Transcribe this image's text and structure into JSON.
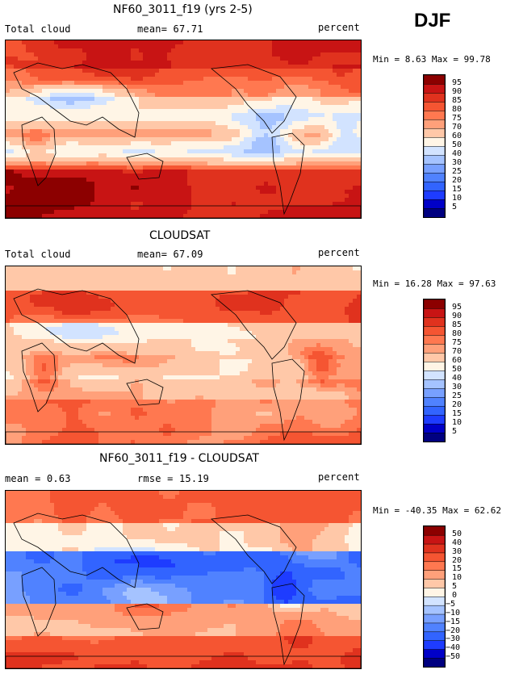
{
  "season": "DJF",
  "panels": [
    {
      "title": "NF60_3011_f19 (yrs 2-5)",
      "left_label": "Total cloud",
      "center_label": "mean=  67.71",
      "right_label": "percent",
      "minmax": "Min =   8.63 Max =  99.78",
      "scale": "abs"
    },
    {
      "title": "CLOUDSAT",
      "left_label": "Total cloud",
      "center_label": "mean=  67.09",
      "right_label": "percent",
      "minmax": "Min =  16.28 Max =  97.63",
      "scale": "abs"
    },
    {
      "title": "NF60_3011_f19 - CLOUDSAT",
      "left_label": "mean =   0.63",
      "center_label": "rmse =  15.19",
      "right_label": "percent",
      "minmax": "Min = -40.35 Max =  62.62",
      "scale": "diff"
    }
  ],
  "chart_data": [
    {
      "type": "heatmap",
      "title": "NF60_3011_f19 (yrs 2-5)",
      "variable": "Total cloud",
      "units": "percent",
      "mean": 67.71,
      "min": 8.63,
      "max": 99.78,
      "colorbar_levels": [
        5,
        10,
        15,
        20,
        25,
        30,
        40,
        50,
        60,
        70,
        75,
        80,
        85,
        90,
        95
      ],
      "colorbar_colors": [
        "#000080",
        "#0000c8",
        "#1e3cff",
        "#3264ff",
        "#5082ff",
        "#78a0ff",
        "#a5c3ff",
        "#d2e3ff",
        "#fff5e6",
        "#ffc8a8",
        "#ffa07a",
        "#ff7850",
        "#f55532",
        "#e0321e",
        "#c81414",
        "#8c0000"
      ]
    },
    {
      "type": "heatmap",
      "title": "CLOUDSAT",
      "variable": "Total cloud",
      "units": "percent",
      "mean": 67.09,
      "min": 16.28,
      "max": 97.63,
      "colorbar_levels": [
        5,
        10,
        15,
        20,
        25,
        30,
        40,
        50,
        60,
        70,
        75,
        80,
        85,
        90,
        95
      ],
      "colorbar_colors": [
        "#000080",
        "#0000c8",
        "#1e3cff",
        "#3264ff",
        "#5082ff",
        "#78a0ff",
        "#a5c3ff",
        "#d2e3ff",
        "#fff5e6",
        "#ffc8a8",
        "#ffa07a",
        "#ff7850",
        "#f55532",
        "#e0321e",
        "#c81414",
        "#8c0000"
      ]
    },
    {
      "type": "heatmap",
      "title": "NF60_3011_f19 - CLOUDSAT",
      "variable": "Total cloud difference",
      "units": "percent",
      "mean": 0.63,
      "rmse": 15.19,
      "min": -40.35,
      "max": 62.62,
      "colorbar_levels": [
        -50,
        -40,
        -30,
        -20,
        -15,
        -10,
        -5,
        0,
        5,
        10,
        15,
        20,
        30,
        40,
        50
      ],
      "colorbar_colors": [
        "#000080",
        "#0000c8",
        "#1e3cff",
        "#3264ff",
        "#5082ff",
        "#78a0ff",
        "#a5c3ff",
        "#d2e3ff",
        "#fff5e6",
        "#ffc8a8",
        "#ffa07a",
        "#ff7850",
        "#f55532",
        "#e0321e",
        "#c81414",
        "#8c0000"
      ]
    }
  ]
}
